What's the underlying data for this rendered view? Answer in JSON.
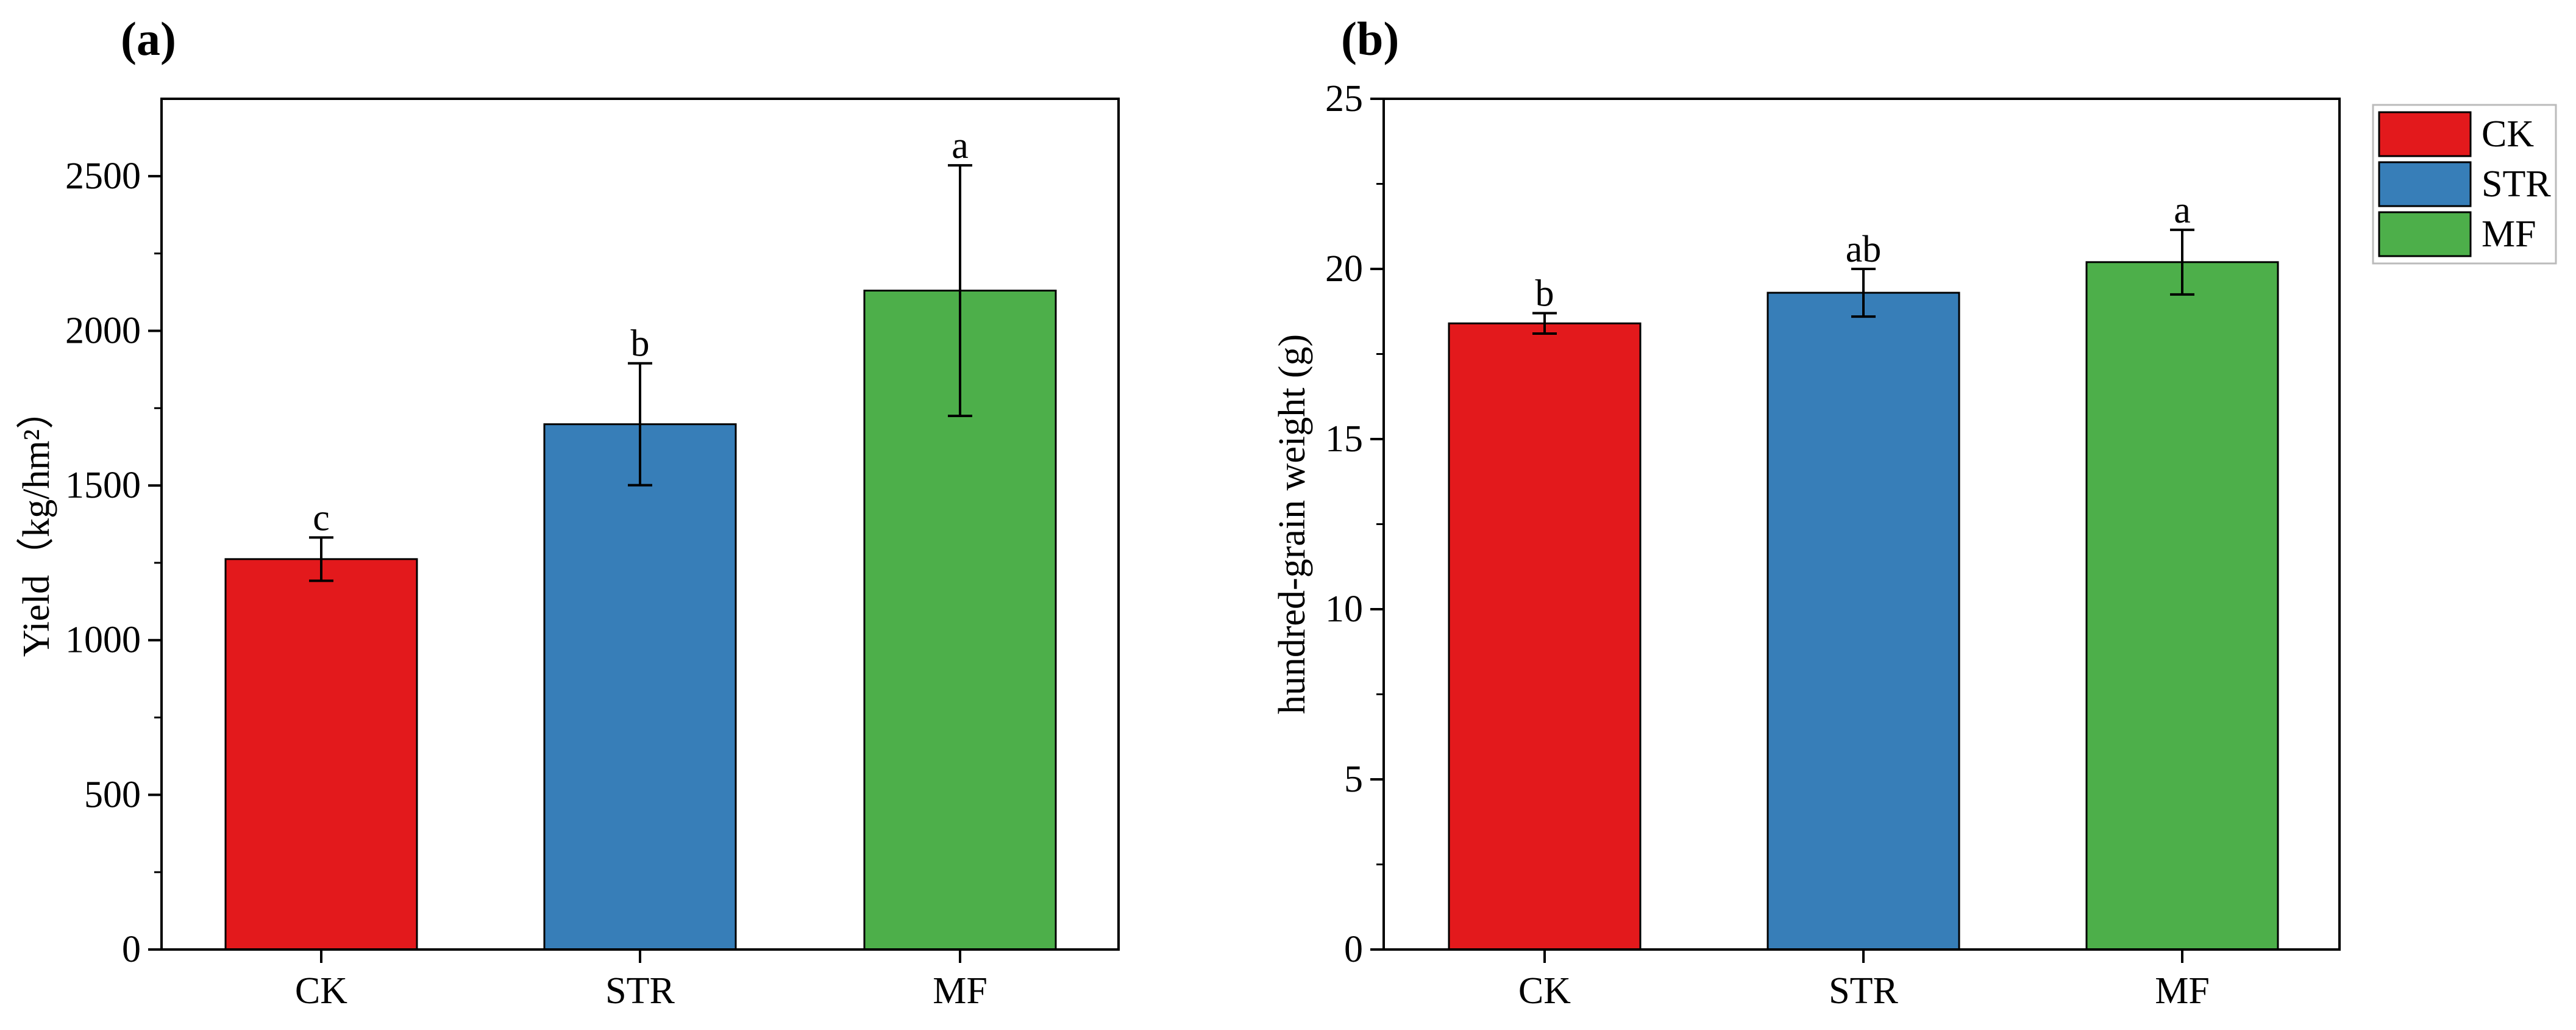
{
  "colors": {
    "CK": "#e3191c",
    "STR": "#377eb8",
    "MF": "#4daf4a",
    "axis": "#000000"
  },
  "chart_data": [
    {
      "type": "bar",
      "panel_label": "(a)",
      "title": "",
      "xlabel": "",
      "ylabel": "Yield（kg/hm²）",
      "ylim": [
        0,
        2750
      ],
      "yticks": [
        0,
        500,
        1000,
        1500,
        2000,
        2500
      ],
      "ytick_labels": [
        "0",
        "500",
        "1000",
        "1500",
        "2000",
        "2500"
      ],
      "minor_step": 250,
      "categories": [
        "CK",
        "STR",
        "MF"
      ],
      "values": [
        1262,
        1698,
        2130
      ],
      "errors": [
        70,
        197,
        405
      ],
      "significance": [
        "c",
        "b",
        "a"
      ],
      "grid": false
    },
    {
      "type": "bar",
      "panel_label": "(b)",
      "title": "",
      "xlabel": "",
      "ylabel": "hundred-grain weight (g)",
      "ylim": [
        0,
        25
      ],
      "yticks": [
        0,
        5,
        10,
        15,
        20,
        25
      ],
      "ytick_labels": [
        "0",
        "5",
        "10",
        "15",
        "20",
        "25"
      ],
      "minor_step": 2.5,
      "categories": [
        "CK",
        "STR",
        "MF"
      ],
      "values": [
        18.4,
        19.3,
        20.2
      ],
      "errors": [
        0.3,
        0.7,
        0.95
      ],
      "significance": [
        "b",
        "ab",
        "a"
      ],
      "grid": false,
      "legend": {
        "placement": "outside-top-right",
        "entries": [
          "CK",
          "STR",
          "MF"
        ]
      }
    }
  ]
}
